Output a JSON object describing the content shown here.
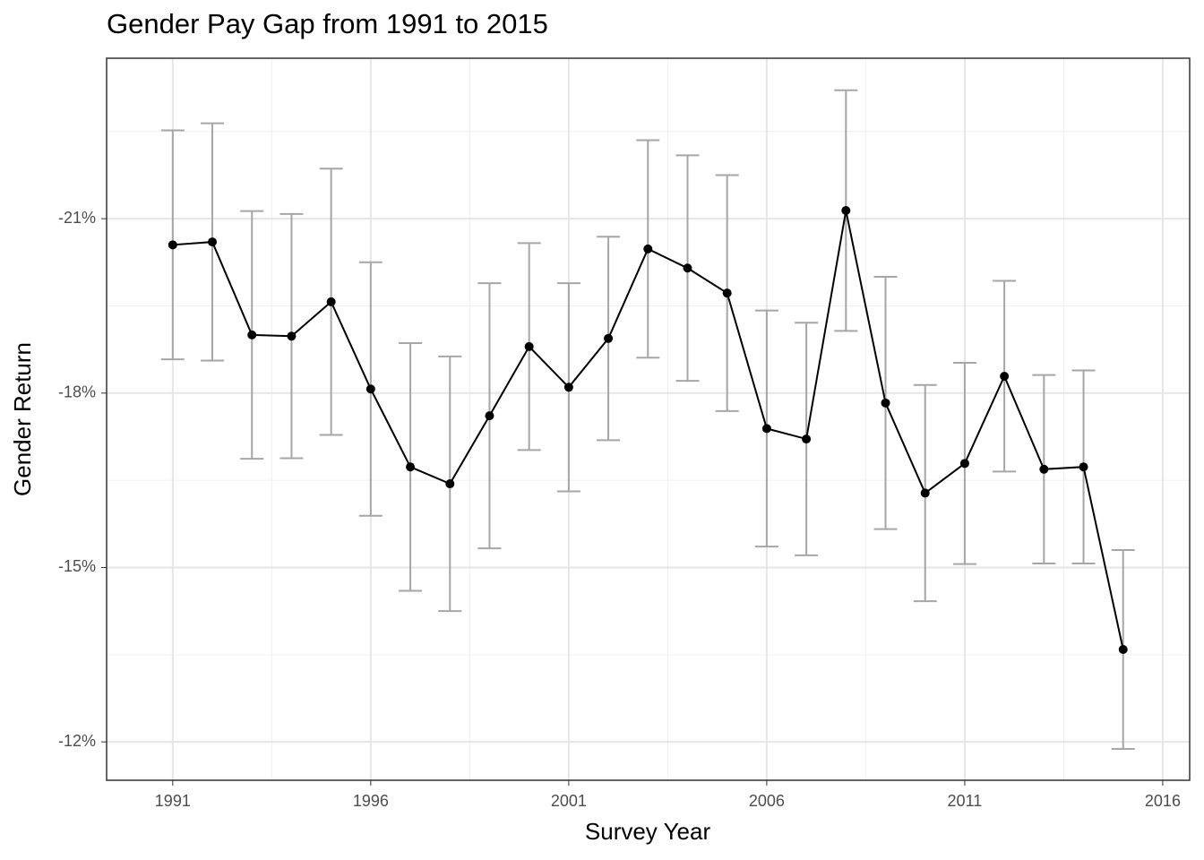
{
  "chart_data": {
    "type": "line",
    "title": "Gender Pay Gap from 1991 to 2015",
    "x_label": "Survey Year",
    "y_label": "Gender Return",
    "x": [
      1991,
      1992,
      1993,
      1994,
      1995,
      1996,
      1997,
      1998,
      1999,
      2000,
      2001,
      2002,
      2003,
      2004,
      2005,
      2006,
      2007,
      2008,
      2009,
      2010,
      2011,
      2012,
      2013,
      2014,
      2015
    ],
    "series": [
      {
        "color": "#000000",
        "error_color": "#a6a6a6",
        "values": [
          -20.55,
          -20.6,
          -19.0,
          -18.98,
          -19.57,
          -18.07,
          -16.73,
          -16.44,
          -17.61,
          -18.8,
          -18.1,
          -18.94,
          -20.48,
          -20.15,
          -19.72,
          -17.39,
          -17.21,
          -21.14,
          -17.83,
          -16.28,
          -16.79,
          -18.29,
          -16.69,
          -16.73,
          -13.59
        ],
        "errors": [
          1.97,
          2.04,
          2.13,
          2.1,
          2.29,
          2.18,
          2.13,
          2.19,
          2.28,
          1.78,
          1.79,
          1.75,
          1.87,
          1.94,
          2.03,
          2.03,
          2.0,
          2.07,
          2.17,
          1.86,
          1.73,
          1.64,
          1.62,
          1.66,
          1.71
        ]
      }
    ],
    "xlim": [
      1989.33,
      2016.68
    ],
    "xticks": [
      1991,
      1996,
      2001,
      2006,
      2011,
      2016
    ],
    "ylim": [
      -11.34,
      -23.76
    ],
    "yticks": [
      {
        "value": -21,
        "label": "-21%"
      },
      {
        "value": -18,
        "label": "-18%"
      },
      {
        "value": -15,
        "label": "-15%"
      },
      {
        "value": -12,
        "label": "-12%"
      }
    ],
    "grid": true
  }
}
